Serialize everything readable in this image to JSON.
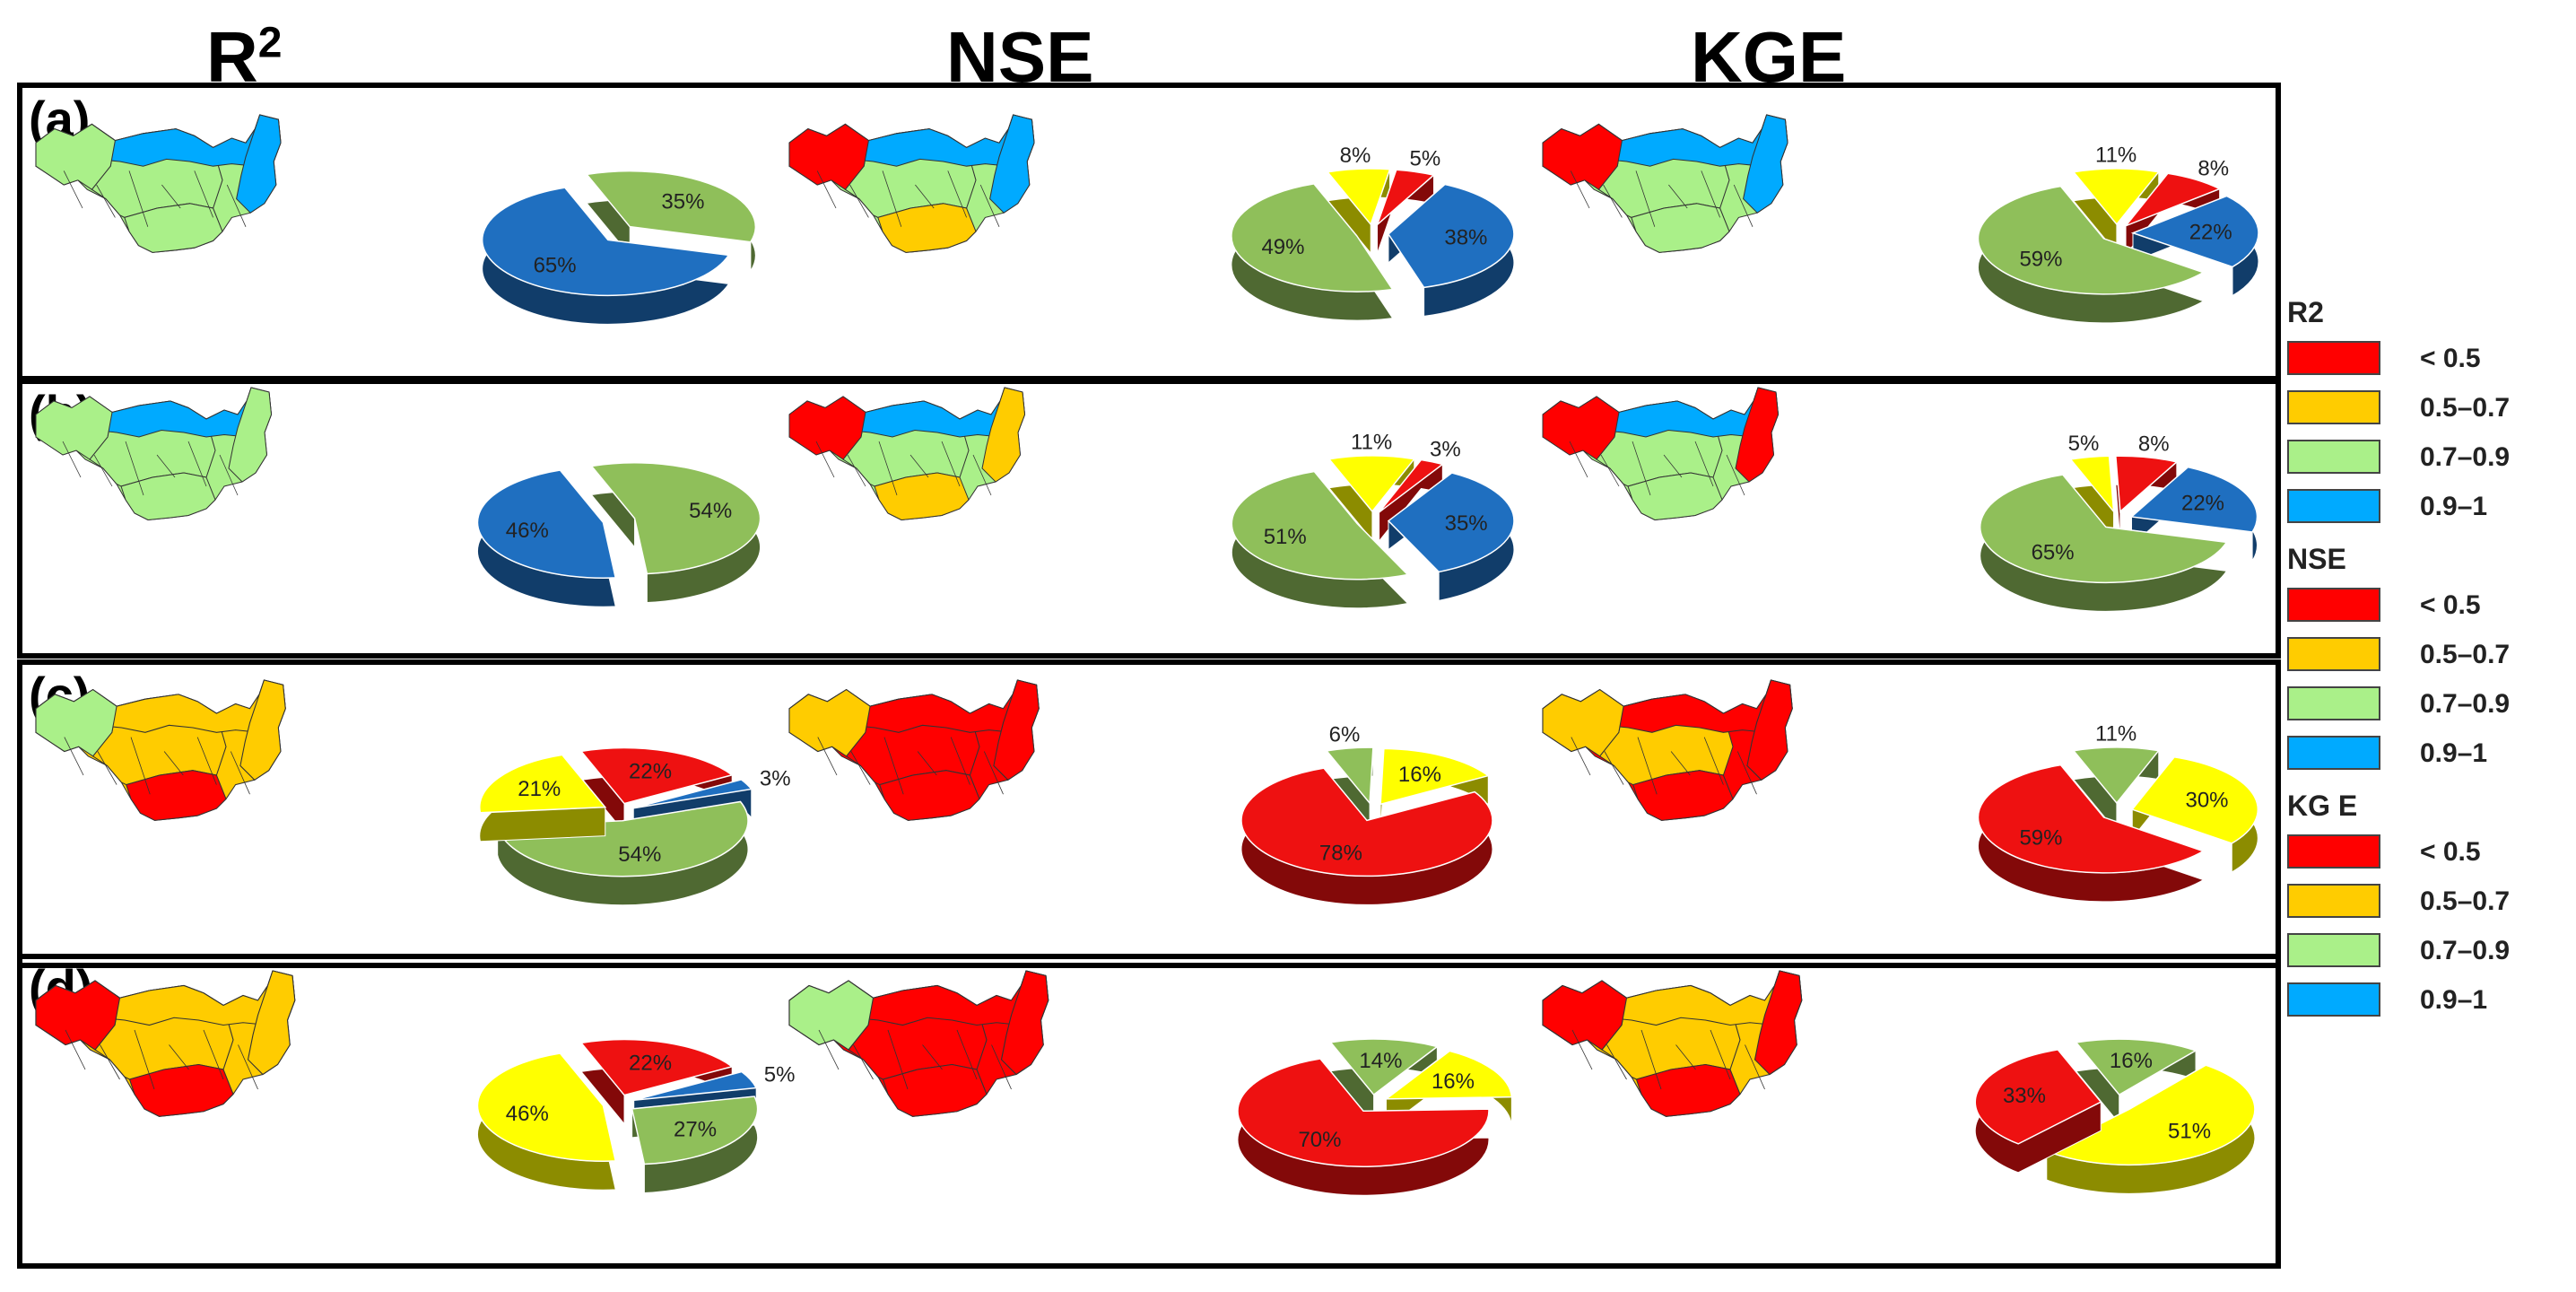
{
  "columns": [
    {
      "base": "R",
      "sup": "2"
    },
    {
      "base": "NSE",
      "sup": ""
    },
    {
      "base": "KGE",
      "sup": ""
    }
  ],
  "rows": [
    "(a)",
    "(b)",
    "(c)",
    "(d)"
  ],
  "colors": {
    "<0.5": "#ff0000",
    "0.5-0.7": "#ffcc00",
    "0.7-0.9": "#aaf089",
    "0.9-1": "#00aaff",
    "pie_red": "#ee1111",
    "pie_yellow": "#ffff00",
    "pie_green": "#8fbf5a",
    "pie_blue": "#1f6fc0"
  },
  "legend": {
    "groups": [
      {
        "title": "R2",
        "items": [
          "< 0.5",
          "0.5–0.7",
          "0.7–0.9",
          "0.9–1"
        ]
      },
      {
        "title": "NSE",
        "items": [
          "< 0.5",
          "0.5–0.7",
          "0.7–0.9",
          "0.9–1"
        ]
      },
      {
        "title": "KG E",
        "items": [
          "< 0.5",
          "0.5–0.7",
          "0.7–0.9",
          "0.9–1"
        ]
      }
    ]
  },
  "chart_data": [
    {
      "type": "pie",
      "row": "(a)",
      "column": "R2",
      "slices": [
        {
          "class": "0.7–0.9",
          "value": 35
        },
        {
          "class": "0.9–1",
          "value": 65
        }
      ]
    },
    {
      "type": "pie",
      "row": "(a)",
      "column": "NSE",
      "slices": [
        {
          "class": "0.5–0.7",
          "value": 8
        },
        {
          "class": "< 0.5",
          "value": 5
        },
        {
          "class": "0.9–1",
          "value": 38
        },
        {
          "class": "0.7–0.9",
          "value": 49
        }
      ]
    },
    {
      "type": "pie",
      "row": "(a)",
      "column": "KGE",
      "slices": [
        {
          "class": "0.5–0.7",
          "value": 11
        },
        {
          "class": "< 0.5",
          "value": 8
        },
        {
          "class": "0.9–1",
          "value": 22
        },
        {
          "class": "0.7–0.9",
          "value": 59
        }
      ]
    },
    {
      "type": "pie",
      "row": "(b)",
      "column": "R2",
      "slices": [
        {
          "class": "0.7–0.9",
          "value": 54
        },
        {
          "class": "0.9–1",
          "value": 46
        }
      ]
    },
    {
      "type": "pie",
      "row": "(b)",
      "column": "NSE",
      "slices": [
        {
          "class": "0.5–0.7",
          "value": 11
        },
        {
          "class": "< 0.5",
          "value": 3
        },
        {
          "class": "0.9–1",
          "value": 35
        },
        {
          "class": "0.7–0.9",
          "value": 51
        }
      ]
    },
    {
      "type": "pie",
      "row": "(b)",
      "column": "KGE",
      "slices": [
        {
          "class": "0.5–0.7",
          "value": 5
        },
        {
          "class": "< 0.5",
          "value": 8
        },
        {
          "class": "0.9–1",
          "value": 22
        },
        {
          "class": "0.7–0.9",
          "value": 65
        }
      ]
    },
    {
      "type": "pie",
      "row": "(c)",
      "column": "R2",
      "slices": [
        {
          "class": "< 0.5",
          "value": 22
        },
        {
          "class": "0.9–1",
          "value": 3
        },
        {
          "class": "0.7–0.9",
          "value": 54
        },
        {
          "class": "0.5–0.7",
          "value": 21
        }
      ]
    },
    {
      "type": "pie",
      "row": "(c)",
      "column": "NSE",
      "slices": [
        {
          "class": "0.7–0.9",
          "value": 6
        },
        {
          "class": "0.5–0.7",
          "value": 16
        },
        {
          "class": "< 0.5",
          "value": 78
        }
      ]
    },
    {
      "type": "pie",
      "row": "(c)",
      "column": "KGE",
      "slices": [
        {
          "class": "0.7–0.9",
          "value": 11
        },
        {
          "class": "0.5–0.7",
          "value": 30
        },
        {
          "class": "< 0.5",
          "value": 59
        }
      ]
    },
    {
      "type": "pie",
      "row": "(d)",
      "column": "R2",
      "slices": [
        {
          "class": "< 0.5",
          "value": 22
        },
        {
          "class": "0.9–1",
          "value": 5
        },
        {
          "class": "0.7–0.9",
          "value": 27
        },
        {
          "class": "0.5–0.7",
          "value": 46
        }
      ]
    },
    {
      "type": "pie",
      "row": "(d)",
      "column": "NSE",
      "slices": [
        {
          "class": "0.7–0.9",
          "value": 14
        },
        {
          "class": "0.5–0.7",
          "value": 16
        },
        {
          "class": "< 0.5",
          "value": 70
        }
      ]
    },
    {
      "type": "pie",
      "row": "(d)",
      "column": "KGE",
      "slices": [
        {
          "class": "0.7–0.9",
          "value": 16
        },
        {
          "class": "0.5–0.7",
          "value": 51
        },
        {
          "class": "< 0.5",
          "value": 33
        }
      ]
    }
  ]
}
